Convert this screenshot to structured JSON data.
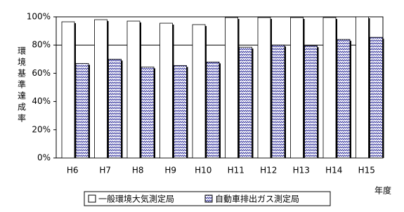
{
  "chart_data": {
    "type": "bar",
    "y_label": "環境基準達成率",
    "x_label": "年度",
    "categories": [
      "H6",
      "H7",
      "H8",
      "H9",
      "H10",
      "H11",
      "H12",
      "H13",
      "H14",
      "H15"
    ],
    "series": [
      {
        "name": "一般環境大気測定局",
        "color": "#ffffff",
        "values": [
          96.5,
          98,
          97,
          95.5,
          94.5,
          99.5,
          99.5,
          99.5,
          99.5,
          100
        ]
      },
      {
        "name": "自動車排出ガス測定局",
        "color": "#3a3aa0",
        "hatch": true,
        "values": [
          67,
          70,
          64.5,
          65.5,
          68,
          78.5,
          80,
          79.5,
          84,
          85.5
        ]
      }
    ],
    "ylim": [
      0,
      100
    ],
    "yticks": [
      {
        "value": 0,
        "label": "0%"
      },
      {
        "value": 20,
        "label": "20%"
      },
      {
        "value": 40,
        "label": "40%"
      },
      {
        "value": 60,
        "label": "60%"
      },
      {
        "value": 80,
        "label": "80%"
      },
      {
        "value": 100,
        "label": "100%"
      }
    ],
    "reference_line": 80
  }
}
